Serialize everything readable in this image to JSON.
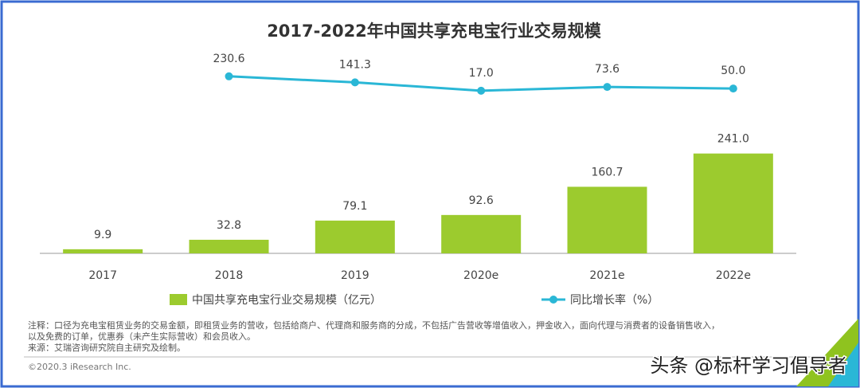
{
  "chart_data": {
    "type": "bar",
    "title": "2017-2022年中国共享充电宝行业交易规模",
    "categories": [
      "2017",
      "2018",
      "2019",
      "2020e",
      "2021e",
      "2022e"
    ],
    "series": [
      {
        "name": "中国共享充电宝行业交易规模（亿元）",
        "type": "bar",
        "color": "#9ccb2e",
        "values": [
          9.9,
          32.8,
          79.1,
          92.6,
          160.7,
          241.0
        ],
        "value_labels": [
          "9.9",
          "32.8",
          "79.1",
          "92.6",
          "160.7",
          "241.0"
        ]
      },
      {
        "name": "同比增长率（%）",
        "type": "line",
        "color": "#2ab7d6",
        "axis": "y2",
        "values": [
          null,
          230.6,
          141.3,
          17.0,
          73.6,
          50.0
        ],
        "value_labels": [
          null,
          "230.6",
          "141.3",
          "17.0",
          "73.6",
          "50.0"
        ]
      }
    ],
    "ylim": [
      0,
      300
    ],
    "y2lim": [
      -1000,
      500
    ],
    "grid": false
  },
  "notes": [
    "注释：口径为充电宝租赁业务的交易金额，即租赁业务的营收，包括给商户、代理商和服务商的分成，不包括广告营收等增值收入，押金收入，面向代理与消费者的设备销售收入，",
    "以及免费的订单，优惠券（未产生实际营收）和会员收入。",
    "来源：艾瑞咨询研究院自主研究及绘制。"
  ],
  "copyright": "©2020.3 iResearch Inc.",
  "watermark": "头条 @标杆学习倡导者"
}
